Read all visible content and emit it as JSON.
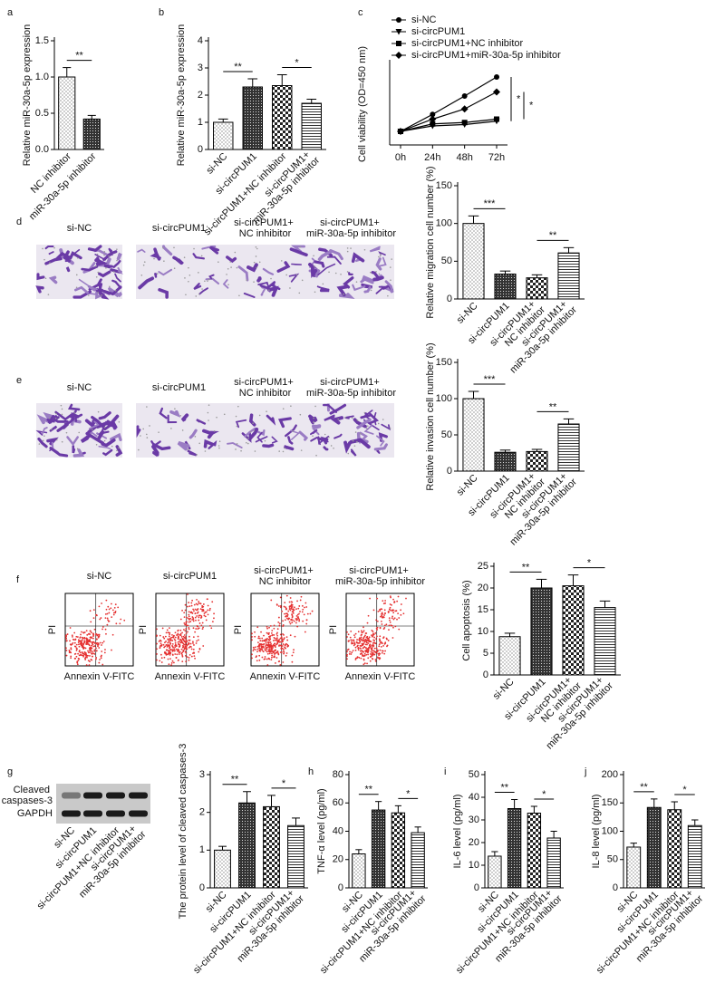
{
  "chart_data": [
    {
      "type": "bar",
      "label": "a",
      "ylabel": "Relative miR-30a-5p expression",
      "categories": [
        "NC inhibitor",
        "miR-30a-5p inhibitor"
      ],
      "values": [
        1.0,
        0.42
      ],
      "errors": [
        0.13,
        0.05
      ],
      "ylim": [
        0,
        1.5
      ],
      "yticks": [
        {
          "value": 0,
          "label": "0.0"
        },
        0.5,
        {
          "value": 1,
          "label": "1.0"
        },
        1.5
      ],
      "significance": [
        {
          "label": "**",
          "pair": [
            0,
            1
          ]
        }
      ]
    },
    {
      "type": "bar",
      "label": "b",
      "ylabel": "Relative miR-30a-5p expression",
      "categories": [
        "si-NC",
        "si-circPUM1",
        "si-circPUM1+NC inhibitor",
        "si-circPUM1+ miR-30a-5p inhibitor"
      ],
      "values": [
        1.0,
        2.3,
        2.35,
        1.7
      ],
      "errors": [
        0.12,
        0.3,
        0.4,
        0.15
      ],
      "ylim": [
        0,
        4
      ],
      "yticks": [
        0,
        1,
        2,
        3,
        4
      ],
      "significance": [
        {
          "label": "**",
          "pair": [
            0,
            1
          ]
        },
        {
          "label": "*",
          "pair": [
            2,
            3
          ]
        }
      ]
    },
    {
      "type": "line",
      "label": "c",
      "ylabel": "Cell viability (OD=450 nm)",
      "categories": [
        "0h",
        "24h",
        "48h",
        "72h"
      ],
      "ylim": [
        0,
        1.2
      ],
      "series": [
        {
          "name": "si-NC",
          "color": "#000000",
          "values": [
            0.2,
            0.45,
            0.72,
            1.0
          ]
        },
        {
          "name": "si-circPUM1",
          "color": "#000000",
          "values": [
            0.2,
            0.28,
            0.3,
            0.35
          ]
        },
        {
          "name": "si-circPUM1+NC inhibitor",
          "color": "#000000",
          "values": [
            0.2,
            0.31,
            0.33,
            0.38
          ]
        },
        {
          "name": "si-circPUM1+miR-30a-5p inhibitor",
          "color": "#000000",
          "values": [
            0.2,
            0.38,
            0.53,
            0.78
          ]
        }
      ],
      "significance": [
        {
          "label": "*",
          "pair": [
            0,
            1
          ]
        },
        {
          "label": "*",
          "pair": [
            2,
            3
          ]
        }
      ]
    },
    {
      "type": "bar",
      "ylabel": "Relative migration cell number (%)",
      "categories": [
        "si-NC",
        "si-circPUM1",
        "si-circPUM1+ NC inhibitor",
        "si-circPUM1+ miR-30a-5p inhibitor"
      ],
      "values": [
        100,
        33,
        28,
        61
      ],
      "errors": [
        10,
        4,
        4,
        7
      ],
      "ylim": [
        0,
        150
      ],
      "yticks": [
        0,
        50,
        100,
        150
      ],
      "significance": [
        {
          "label": "***",
          "pair": [
            0,
            1
          ]
        },
        {
          "label": "**",
          "pair": [
            2,
            3
          ]
        }
      ]
    },
    {
      "type": "bar",
      "ylabel": "Relative invasion cell number (%)",
      "categories": [
        "si-NC",
        "si-circPUM1",
        "si-circPUM1+ NC inhibitor",
        "si-circPUM1+ miR-30a-5p inhibitor"
      ],
      "values": [
        100,
        26,
        27,
        65
      ],
      "errors": [
        10,
        3,
        3,
        7
      ],
      "ylim": [
        0,
        150
      ],
      "yticks": [
        0,
        50,
        100,
        150
      ],
      "significance": [
        {
          "label": "***",
          "pair": [
            0,
            1
          ]
        },
        {
          "label": "**",
          "pair": [
            2,
            3
          ]
        }
      ]
    },
    {
      "type": "bar",
      "ylabel": "Cell apoptosis (%)",
      "categories": [
        "si-NC",
        "si-circPUM1",
        "si-circPUM1+ NC inhibitor",
        "si-circPUM1+ miR-30a-5p inhibitor"
      ],
      "values": [
        8.8,
        20,
        20.5,
        15.5
      ],
      "errors": [
        0.8,
        2,
        2.5,
        1.5
      ],
      "ylim": [
        0,
        25
      ],
      "yticks": [
        0,
        5,
        10,
        15,
        20,
        25
      ],
      "significance": [
        {
          "label": "**",
          "pair": [
            0,
            1
          ]
        },
        {
          "label": "*",
          "pair": [
            2,
            3
          ]
        }
      ]
    },
    {
      "type": "bar",
      "ylabel": "The protein level of cleaved caspases-3",
      "categories": [
        "si-NC",
        "si-circPUM1",
        "si-circPUM1+NC inhibitor",
        "si-circPUM1+ miR-30a-5p inhibitor"
      ],
      "values": [
        1.0,
        2.25,
        2.15,
        1.65
      ],
      "errors": [
        0.1,
        0.3,
        0.3,
        0.2
      ],
      "ylim": [
        0,
        3
      ],
      "yticks": [
        0,
        1,
        2,
        3
      ],
      "significance": [
        {
          "label": "**",
          "pair": [
            0,
            1
          ]
        },
        {
          "label": "*",
          "pair": [
            2,
            3
          ]
        }
      ]
    },
    {
      "type": "bar",
      "label": "h",
      "ylabel": "TNF-α level (pg/ml)",
      "categories": [
        "si-NC",
        "si-circPUM1",
        "si-circPUM1+NC inhibitor",
        "si-circPUM1+ miR-30a-5p inhibitor"
      ],
      "values": [
        24,
        55,
        53,
        39
      ],
      "errors": [
        3,
        6,
        5,
        4
      ],
      "ylim": [
        0,
        80
      ],
      "yticks": [
        0,
        20,
        40,
        60,
        80
      ],
      "significance": [
        {
          "label": "**",
          "pair": [
            0,
            1
          ]
        },
        {
          "label": "*",
          "pair": [
            2,
            3
          ]
        }
      ]
    },
    {
      "type": "bar",
      "label": "i",
      "ylabel": "IL-6 level (pg/ml)",
      "categories": [
        "si-NC",
        "si-circPUM1",
        "si-circPUM1+NC inhibitor",
        "si-circPUM1+ miR-30a-5p inhibitor"
      ],
      "values": [
        14,
        35,
        33,
        22
      ],
      "errors": [
        2,
        4,
        3,
        3
      ],
      "ylim": [
        0,
        50
      ],
      "yticks": [
        0,
        10,
        20,
        30,
        40,
        50
      ],
      "significance": [
        {
          "label": "**",
          "pair": [
            0,
            1
          ]
        },
        {
          "label": "*",
          "pair": [
            2,
            3
          ]
        }
      ]
    },
    {
      "type": "bar",
      "label": "j",
      "ylabel": "IL-8 level (pg/ml)",
      "categories": [
        "si-NC",
        "si-circPUM1",
        "si-circPUM1+NC inhibitor",
        "si-circPUM1+ miR-30a-5p inhibitor"
      ],
      "values": [
        72,
        142,
        138,
        110
      ],
      "errors": [
        7,
        15,
        14,
        10
      ],
      "ylim": [
        0,
        200
      ],
      "yticks": [
        0,
        50,
        100,
        150,
        200
      ],
      "significance": [
        {
          "label": "**",
          "pair": [
            0,
            1
          ]
        },
        {
          "label": "*",
          "pair": [
            2,
            3
          ]
        }
      ]
    }
  ],
  "image_panels": [
    {
      "label": "d",
      "kind": "micrograph",
      "titles": [
        "si-NC",
        "si-circPUM1",
        "si-circPUM1+ NC inhibitor",
        "si-circPUM1+ miR-30a-5p inhibitor"
      ]
    },
    {
      "label": "e",
      "kind": "micrograph",
      "titles": [
        "si-NC",
        "si-circPUM1",
        "si-circPUM1+ NC inhibitor",
        "si-circPUM1+ miR-30a-5p inhibitor"
      ]
    },
    {
      "label": "f",
      "kind": "flow",
      "titles": [
        "si-NC",
        "si-circPUM1",
        "si-circPUM1+ NC inhibitor",
        "si-circPUM1+ miR-30a-5p inhibitor"
      ],
      "xlabel": "Annexin V-FITC",
      "ylabel": "PI"
    },
    {
      "label": "g",
      "kind": "blot",
      "rows": [
        "Cleaved caspases-3",
        "GAPDH"
      ],
      "lanes": [
        "si-NC",
        "si-circPUM1",
        "si-circPUM1+NC inhibitor",
        "si-circPUM1+ miR-30a-5p inhibitor"
      ]
    }
  ]
}
